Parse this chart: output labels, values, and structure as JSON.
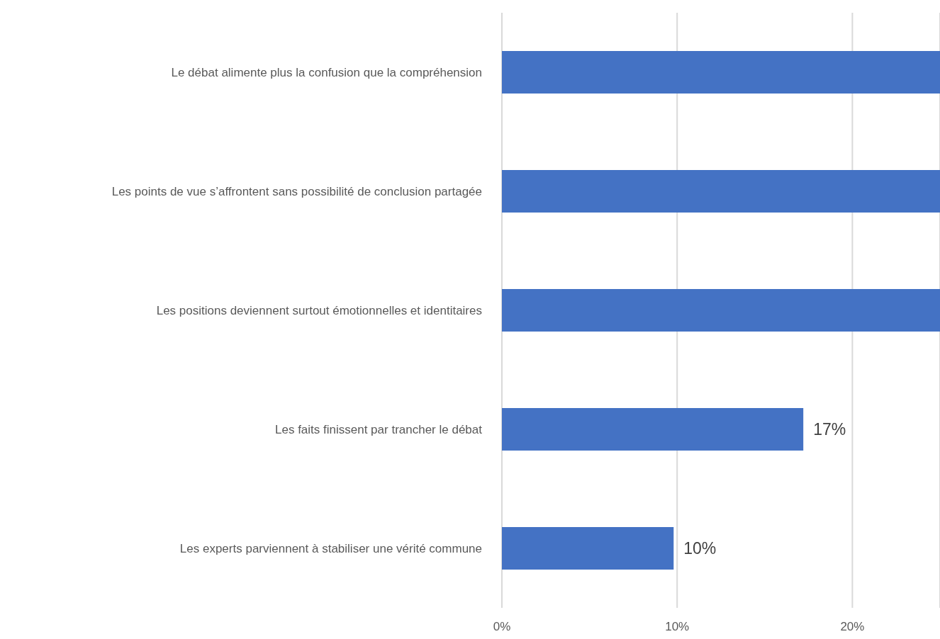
{
  "chart_data": {
    "type": "bar",
    "orientation": "horizontal",
    "categories": [
      "Le débat alimente plus la confusion que la compréhension",
      "Les points de vue s’affrontent sans possibilité de conclusion partagée",
      "Les positions deviennent surtout émotionnelles et identitaires",
      "Les faits finissent par trancher le débat",
      "Les experts parviennent à stabiliser une vérité commune"
    ],
    "values": [
      25,
      25,
      25,
      17.2,
      9.8
    ],
    "value_labels": [
      null,
      null,
      null,
      "17%",
      "10%"
    ],
    "color": "#4472c4",
    "xlim": [
      0,
      25
    ],
    "xticks": [
      {
        "value": 0,
        "label": "0%"
      },
      {
        "value": 10,
        "label": "10%"
      },
      {
        "value": 20,
        "label": "20%"
      }
    ],
    "grid": "x"
  }
}
